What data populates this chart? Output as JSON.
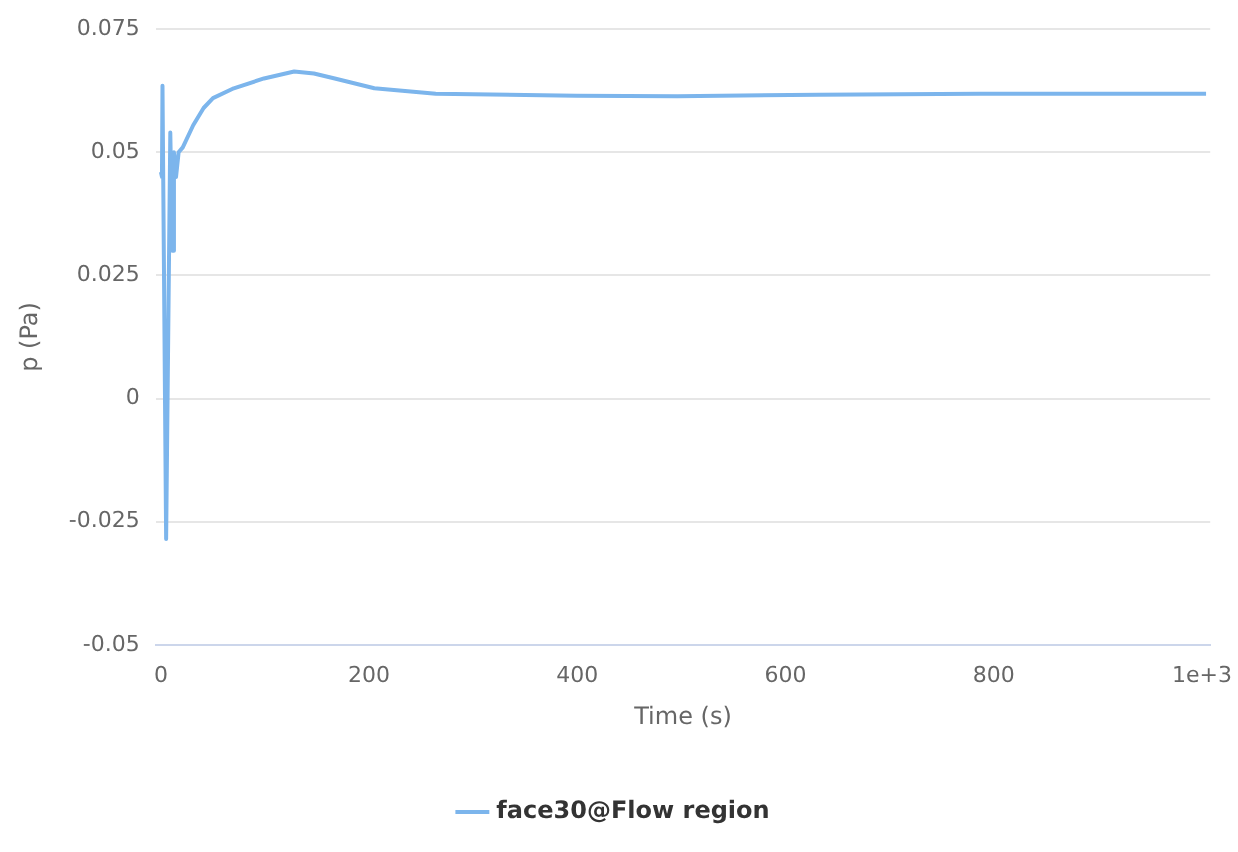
{
  "chart_data": {
    "type": "line",
    "xlabel": "Time (s)",
    "ylabel": "p (Pa)",
    "xlim": [
      -5,
      1008
    ],
    "xticks": [
      0,
      200,
      400,
      600,
      800,
      {
        "value": 1000,
        "label": "1e+3"
      }
    ],
    "ylim": [
      -0.05,
      0.075
    ],
    "yticks": [
      -0.05,
      -0.025,
      0,
      0.025,
      0.05,
      0.075
    ],
    "grid": "y",
    "legend": "bottom",
    "marker": "none",
    "series": [
      {
        "name": "face30@Flow region",
        "color": "#7cb5ec",
        "x": [
          0,
          1,
          1.5,
          5,
          9,
          11,
          12.5,
          14.5,
          17,
          21,
          31,
          41,
          50,
          70,
          99,
          128,
          147,
          167,
          205,
          264,
          399,
          496,
          632,
          787,
          1004
        ],
        "values": [
          0.046,
          0.045,
          0.0635,
          -0.0285,
          0.054,
          0.03,
          0.05,
          0.045,
          0.05,
          0.051,
          0.0555,
          0.059,
          0.061,
          0.063,
          0.065,
          0.0664,
          0.066,
          0.065,
          0.063,
          0.0619,
          0.0615,
          0.0614,
          0.0617,
          0.0619,
          0.0619
        ]
      }
    ]
  }
}
